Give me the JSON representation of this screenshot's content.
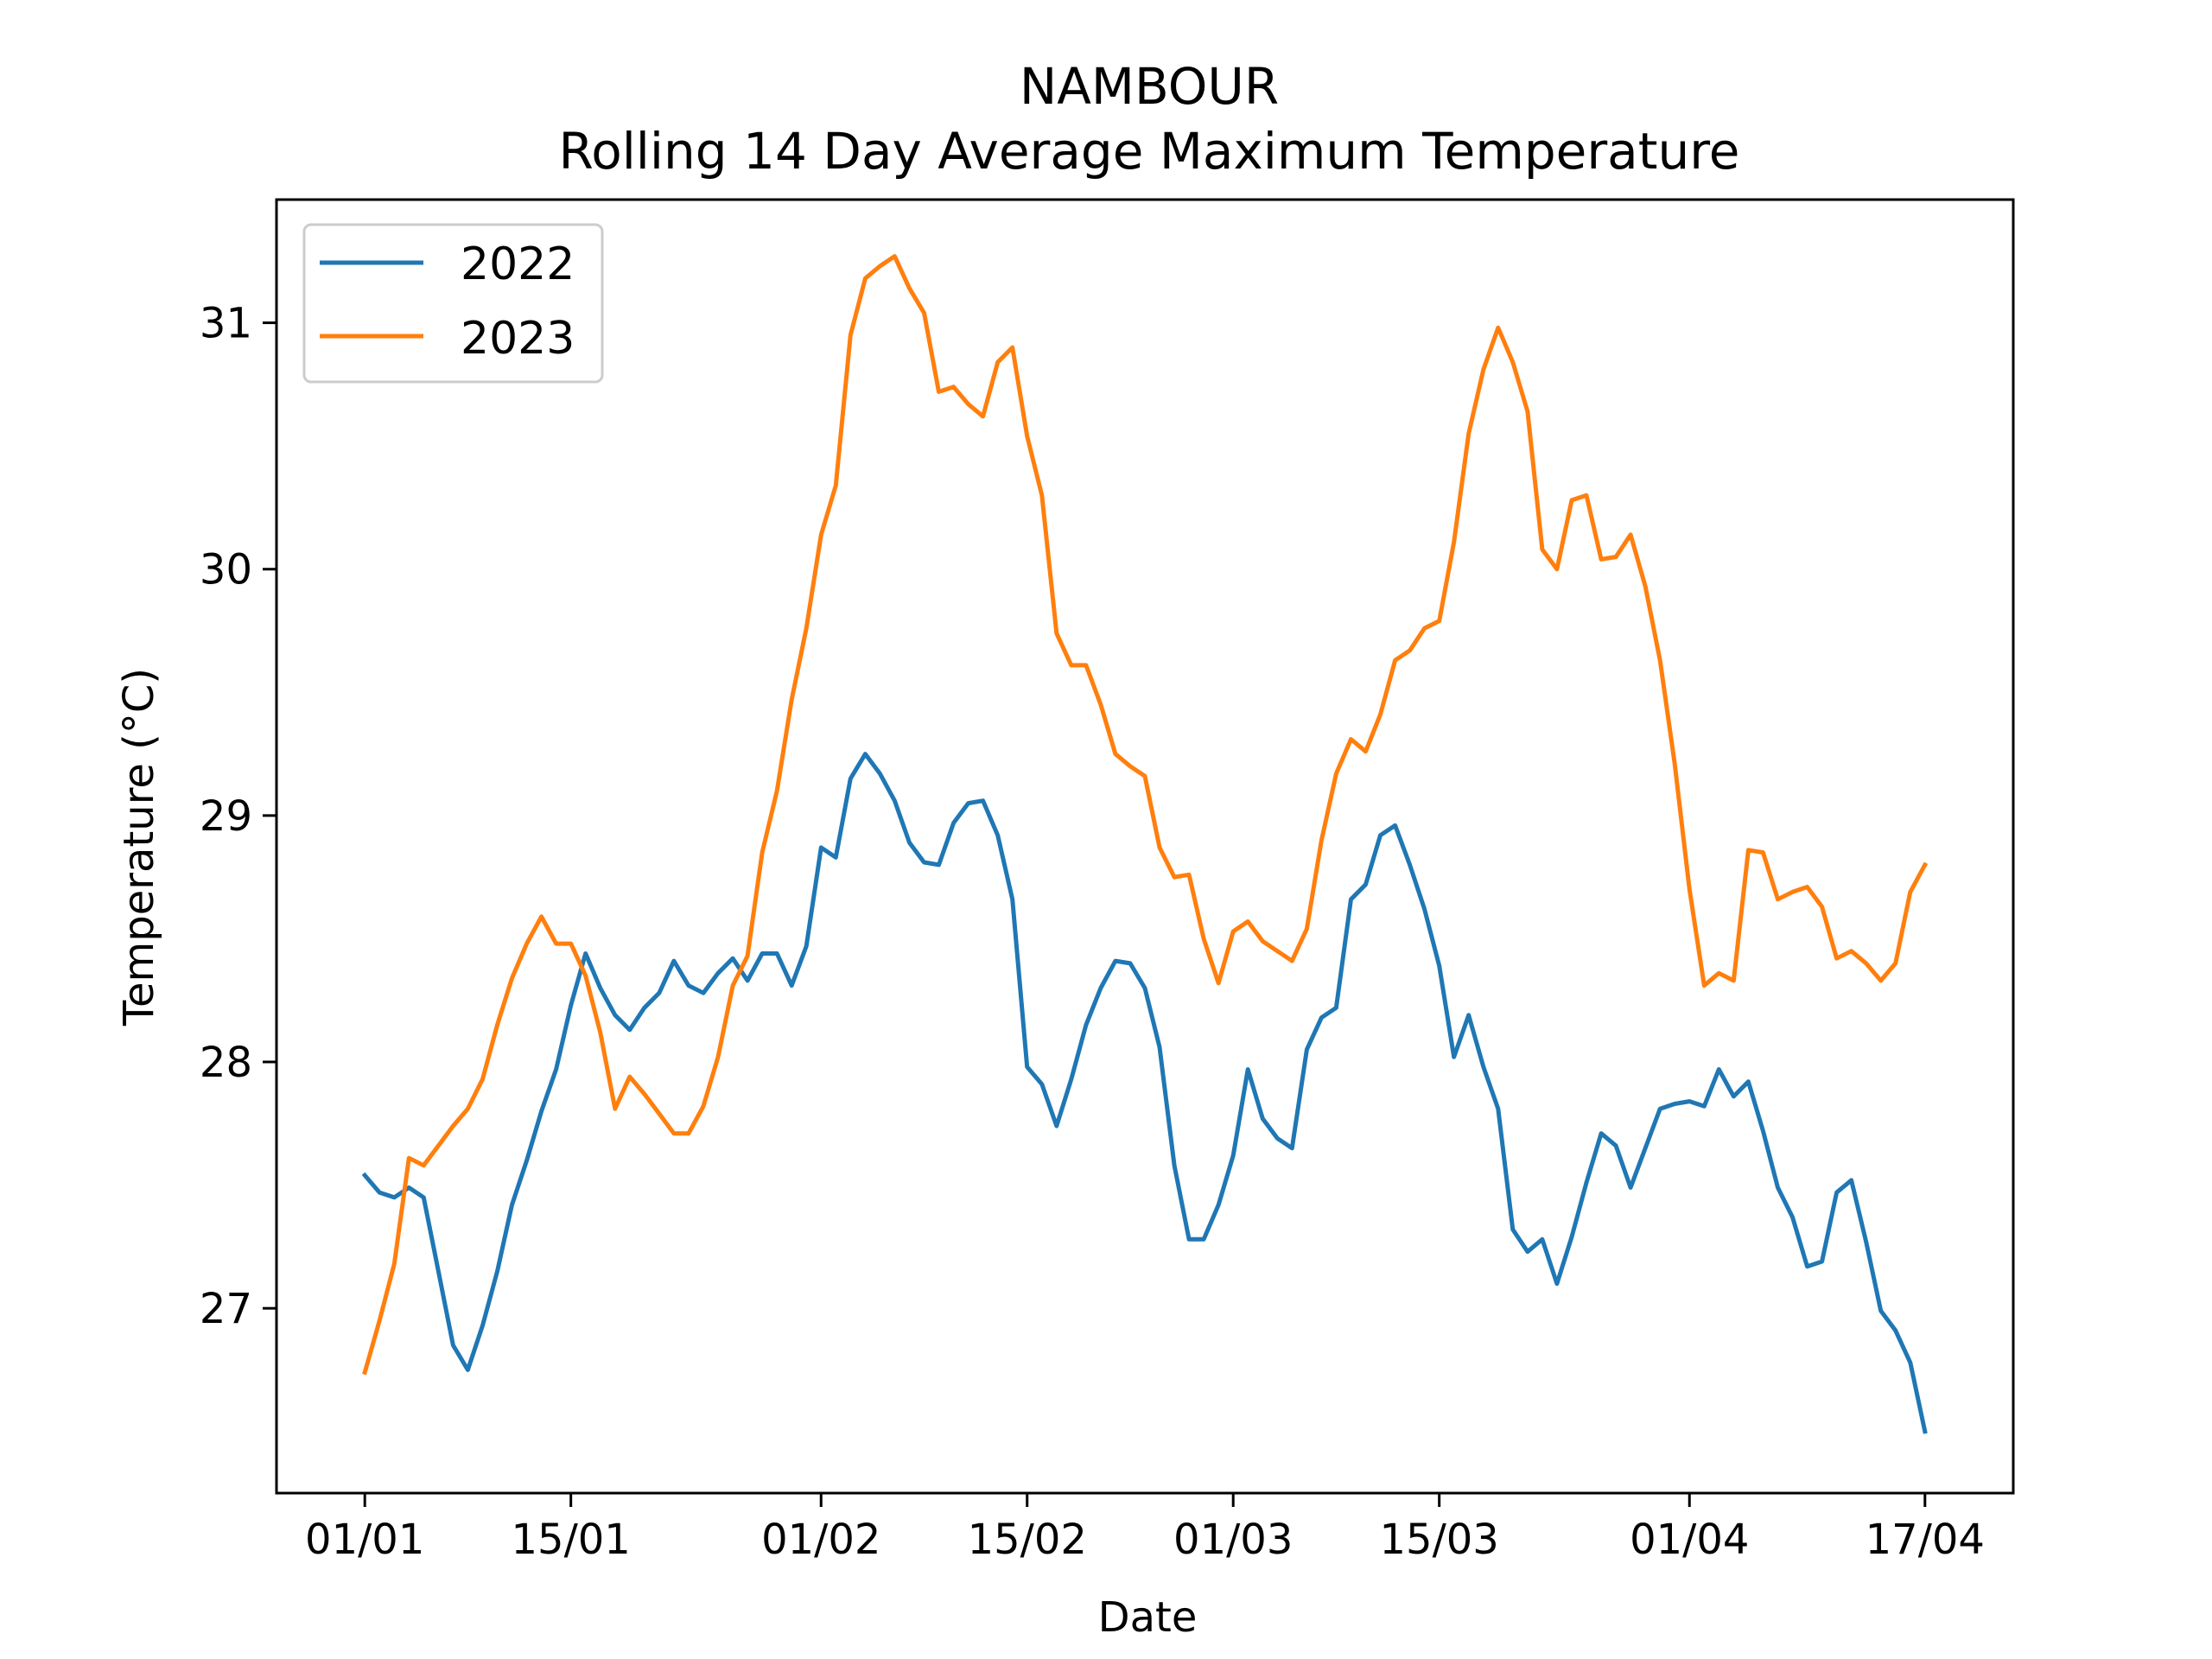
{
  "chart_data": {
    "type": "line",
    "title": "NAMBOUR",
    "subtitle": "Rolling 14 Day Average Maximum Temperature",
    "xlabel": "Date",
    "ylabel": "Temperature (°C)",
    "x_start": "01/01",
    "x_end": "17/04",
    "xlim": [
      "26/12",
      "23/04"
    ],
    "ylim": [
      26.25,
      31.5
    ],
    "x_ticks": [
      {
        "date": "01/01",
        "label": "01/01"
      },
      {
        "date": "15/01",
        "label": "15/01"
      },
      {
        "date": "01/02",
        "label": "01/02"
      },
      {
        "date": "15/02",
        "label": "15/02"
      },
      {
        "date": "01/03",
        "label": "01/03"
      },
      {
        "date": "15/03",
        "label": "15/03"
      },
      {
        "date": "01/04",
        "label": "01/04"
      },
      {
        "date": "17/04",
        "label": "17/04"
      }
    ],
    "y_ticks": [
      27,
      28,
      29,
      30,
      31
    ],
    "grid": false,
    "legend": "top-left",
    "series": [
      {
        "name": "2022",
        "color": "#1f77b4",
        "values": [
          27.54,
          27.47,
          27.45,
          27.49,
          27.45,
          27.15,
          26.85,
          26.75,
          26.93,
          27.15,
          27.42,
          27.6,
          27.8,
          27.97,
          28.23,
          28.44,
          28.3,
          28.19,
          28.13,
          28.22,
          28.28,
          28.41,
          28.31,
          28.28,
          28.36,
          28.42,
          28.33,
          28.44,
          28.44,
          28.31,
          28.47,
          28.87,
          28.83,
          29.15,
          29.25,
          29.17,
          29.06,
          28.89,
          28.81,
          28.8,
          28.97,
          29.05,
          29.06,
          28.92,
          28.66,
          27.98,
          27.91,
          27.74,
          27.93,
          28.15,
          28.3,
          28.41,
          28.4,
          28.3,
          28.06,
          27.58,
          27.28,
          27.28,
          27.42,
          27.62,
          27.97,
          27.77,
          27.69,
          27.65,
          28.05,
          28.18,
          28.22,
          28.66,
          28.72,
          28.92,
          28.96,
          28.8,
          28.62,
          28.39,
          28.02,
          28.19,
          27.98,
          27.81,
          27.32,
          27.23,
          27.28,
          27.1,
          27.29,
          27.51,
          27.71,
          27.66,
          27.49,
          27.65,
          27.81,
          27.83,
          27.84,
          27.82,
          27.97,
          27.86,
          27.92,
          27.72,
          27.49,
          27.37,
          27.17,
          27.19,
          27.47,
          27.52,
          27.27,
          26.99,
          26.91,
          26.78,
          26.5
        ]
      },
      {
        "name": "2023",
        "color": "#ff7f0e",
        "values": [
          26.74,
          26.95,
          27.18,
          27.61,
          27.58,
          27.66,
          27.74,
          27.81,
          27.93,
          28.15,
          28.34,
          28.48,
          28.59,
          28.48,
          28.48,
          28.35,
          28.12,
          27.81,
          27.94,
          27.87,
          27.79,
          27.71,
          27.71,
          27.82,
          28.02,
          28.31,
          28.43,
          28.85,
          29.1,
          29.47,
          29.76,
          30.14,
          30.34,
          30.95,
          31.18,
          31.23,
          31.27,
          31.14,
          31.04,
          30.72,
          30.74,
          30.67,
          30.62,
          30.84,
          30.9,
          30.54,
          30.3,
          29.74,
          29.61,
          29.61,
          29.45,
          29.25,
          29.2,
          29.16,
          28.87,
          28.75,
          28.76,
          28.5,
          28.32,
          28.53,
          28.57,
          28.49,
          28.45,
          28.41,
          28.54,
          28.9,
          29.17,
          29.31,
          29.26,
          29.41,
          29.63,
          29.67,
          29.76,
          29.79,
          30.11,
          30.55,
          30.81,
          30.98,
          30.84,
          30.64,
          30.08,
          30.0,
          30.28,
          30.3,
          30.04,
          30.05,
          30.14,
          29.93,
          29.63,
          29.21,
          28.7,
          28.31,
          28.36,
          28.33,
          28.86,
          28.85,
          28.66,
          28.69,
          28.71,
          28.63,
          28.42,
          28.45,
          28.4,
          28.33,
          28.4,
          28.69,
          28.8
        ]
      }
    ]
  }
}
